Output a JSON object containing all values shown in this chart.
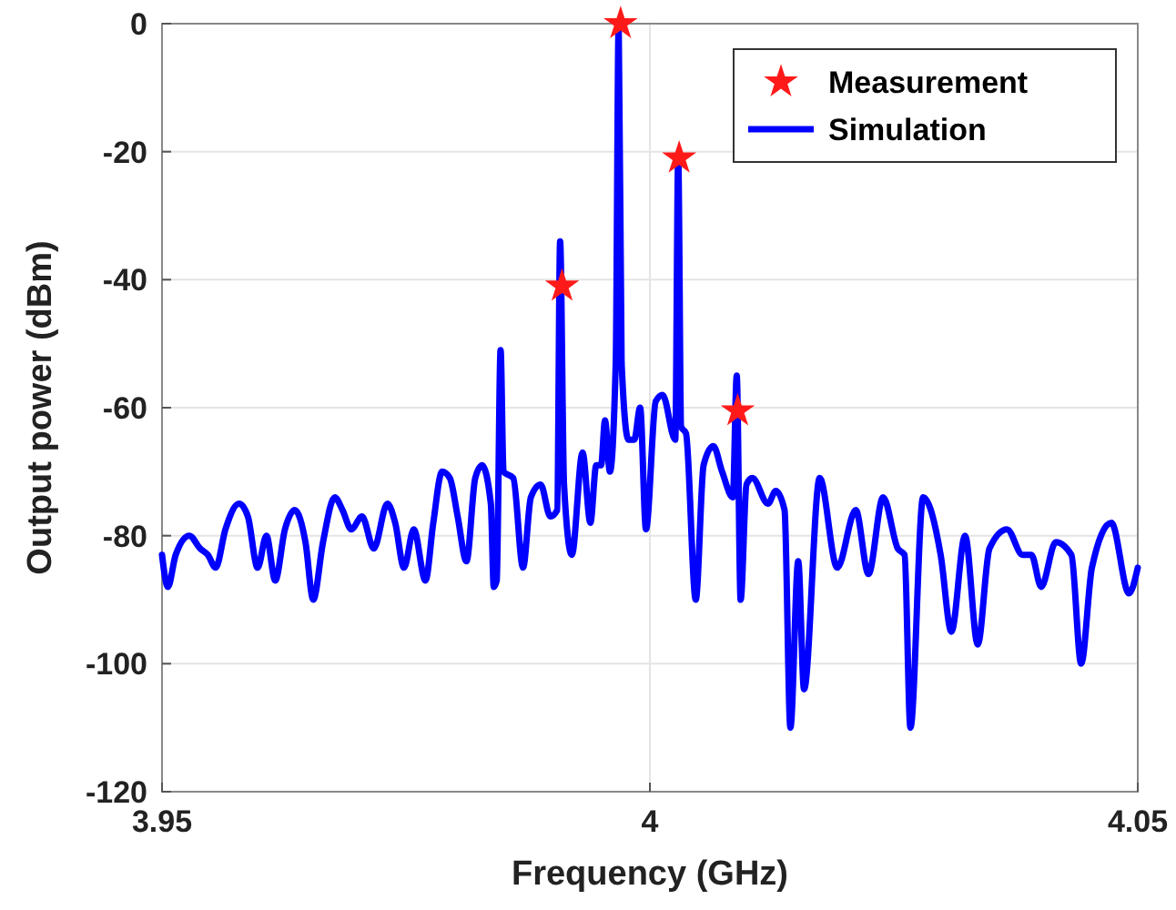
{
  "chart_data": {
    "type": "line",
    "xlabel": "Frequency (GHz)",
    "ylabel": "Output power (dBm)",
    "xlim": [
      3.95,
      4.05
    ],
    "xticks": [
      3.95,
      4,
      4.05
    ],
    "ylim": [
      -120,
      0
    ],
    "yticks": [
      -120,
      -100,
      -80,
      -60,
      -40,
      -20,
      0
    ],
    "grid": true,
    "legend": "top right",
    "series": [
      {
        "name": "Measurement",
        "type": "scatter",
        "marker": "star",
        "color": "#ff1a1a",
        "x": [
          3.991,
          3.997,
          4.003,
          4.009
        ],
        "values": [
          -41,
          0,
          -21,
          -60.5
        ]
      },
      {
        "name": "Simulation",
        "marker": "none",
        "line_style": "solid",
        "color": "#0000ff",
        "x": [
          3.95,
          3.9506,
          3.9514,
          3.9528,
          3.9539,
          3.9547,
          3.9555,
          3.9565,
          3.9579,
          3.9588,
          3.9598,
          3.9607,
          3.9616,
          3.9626,
          3.9636,
          3.9647,
          3.9655,
          3.9665,
          3.9677,
          3.9685,
          3.9694,
          3.9705,
          3.9717,
          3.9731,
          3.9739,
          3.9748,
          3.9758,
          3.977,
          3.9778,
          3.9787,
          3.9795,
          3.9803,
          3.9812,
          3.9821,
          3.9828,
          3.9837,
          3.984,
          3.9843,
          3.9847,
          3.985,
          3.986,
          3.987,
          3.9878,
          3.9888,
          3.9898,
          3.9905,
          3.9908,
          3.9912,
          3.992,
          3.9931,
          3.9939,
          3.9945,
          3.995,
          3.9954,
          3.9959,
          3.9965,
          3.9968,
          3.9971,
          3.9978,
          3.9984,
          3.999,
          3.9996,
          4.0006,
          4.0013,
          4.0026,
          4.0029,
          4.0032,
          4.0037,
          4.0047,
          4.0055,
          4.0065,
          4.0074,
          4.0085,
          4.0089,
          4.0093,
          4.0099,
          4.0105,
          4.0121,
          4.0129,
          4.0138,
          4.0144,
          4.0152,
          4.0158,
          4.0174,
          4.0192,
          4.0211,
          4.0224,
          4.0239,
          4.0254,
          4.0261,
          4.0267,
          4.028,
          4.0298,
          4.0309,
          4.0323,
          4.0336,
          4.0348,
          4.0366,
          4.0382,
          4.0391,
          4.0401,
          4.0416,
          4.0432,
          4.0442,
          4.0453,
          4.0473,
          4.0491,
          4.05
        ],
        "values": [
          -83,
          -88,
          -83,
          -80,
          -82,
          -83,
          -85,
          -79,
          -75,
          -77,
          -85,
          -80,
          -87,
          -79,
          -76,
          -81,
          -90,
          -81,
          -74,
          -76,
          -79,
          -77,
          -82,
          -75,
          -78,
          -85,
          -79,
          -87,
          -78,
          -70,
          -71,
          -77,
          -84,
          -71,
          -69,
          -75,
          -88,
          -87,
          -51,
          -70,
          -71,
          -85,
          -74,
          -72,
          -77,
          -76,
          -34,
          -72,
          -83,
          -67,
          -78,
          -69,
          -69,
          -62,
          -70,
          -53,
          0,
          -53,
          -65,
          -65,
          -60,
          -79,
          -59,
          -58,
          -65,
          -21,
          -63,
          -64,
          -90,
          -69,
          -66,
          -70,
          -74,
          -55,
          -90,
          -72,
          -71,
          -75,
          -73,
          -76,
          -110,
          -84,
          -104,
          -71,
          -85,
          -76,
          -86,
          -74,
          -82,
          -83,
          -110,
          -74,
          -83,
          -95,
          -80,
          -97,
          -82,
          -79,
          -83,
          -83,
          -88,
          -81,
          -83,
          -100,
          -85,
          -78,
          -89,
          -85
        ]
      }
    ]
  }
}
